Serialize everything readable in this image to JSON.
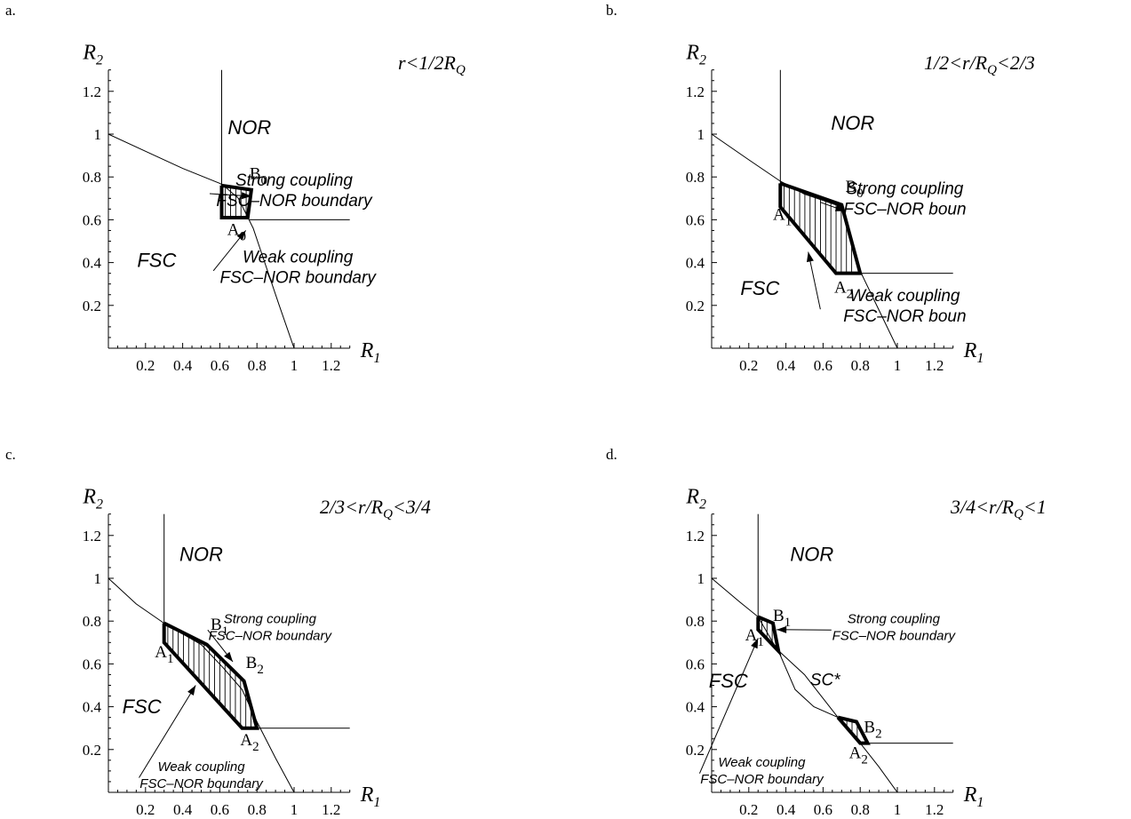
{
  "chart_data": [
    {
      "type": "phase-diagram",
      "panel_label": "a.",
      "title": "r<1/2R",
      "title_sub": "Q",
      "xlabel": "R",
      "xlabel_sub": "1",
      "ylabel": "R",
      "ylabel_sub": "2",
      "xlim": [
        0,
        1.3
      ],
      "ylim": [
        0,
        1.3
      ],
      "xticks": [
        "0.2",
        "0.4",
        "0.6",
        "0.8",
        "1",
        "1.2"
      ],
      "yticks": [
        "0.2",
        "0.4",
        "0.6",
        "0.8",
        "1",
        "1.2"
      ],
      "grid": false,
      "regions": [
        {
          "label": "NOR",
          "at": [
            0.76,
            1.0
          ]
        },
        {
          "label": "FSC",
          "at": [
            0.26,
            0.38
          ]
        }
      ],
      "boundary_curve": {
        "x": [
          0,
          0.2,
          0.4,
          0.6,
          0.62,
          0.7,
          0.78,
          0.85,
          0.92,
          1.0
        ],
        "y": [
          1.0,
          0.92,
          0.84,
          0.77,
          0.76,
          0.7,
          0.56,
          0.38,
          0.2,
          0
        ]
      },
      "vertical_line": {
        "x": 0.61,
        "y_from": 0.61,
        "y_to": 1.3
      },
      "horizontal_line": {
        "y": 0.6,
        "x_from": 0.76,
        "x_to": 1.3
      },
      "strong_boundary": {
        "x": [
          0.61,
          0.61,
          0.75,
          0.77,
          0.61
        ],
        "y": [
          0.76,
          0.61,
          0.61,
          0.74,
          0.76
        ]
      },
      "hatch_range": [
        0.63,
        0.75
      ],
      "points": [
        {
          "name": "B",
          "sub": "0",
          "x": 0.76,
          "y": 0.74,
          "label_at": [
            0.76,
            0.79
          ]
        },
        {
          "name": "A",
          "sub": "0",
          "x": 0.61,
          "y": 0.61,
          "label_at": [
            0.64,
            0.53
          ]
        }
      ],
      "annotations": [
        {
          "lines": [
            "Strong coupling",
            "FSC–NOR boundary"
          ],
          "at": [
            1.0,
            0.76
          ],
          "arrow_to": [
            0.77,
            0.71
          ],
          "size": "big"
        },
        {
          "lines": [
            "Weak coupling",
            "FSC–NOR boundary"
          ],
          "at": [
            1.02,
            0.4
          ],
          "arrow_to": [
            0.74,
            0.55
          ],
          "size": "big"
        }
      ]
    },
    {
      "type": "phase-diagram",
      "panel_label": "b.",
      "title": "1/2<r/R",
      "title_sub": "Q",
      "title_tail": "<2/3",
      "xlabel": "R",
      "xlabel_sub": "1",
      "ylabel": "R",
      "ylabel_sub": "2",
      "xlim": [
        0,
        1.3
      ],
      "ylim": [
        0,
        1.3
      ],
      "xticks": [
        "0.2",
        "0.4",
        "0.6",
        "0.8",
        "1",
        "1.2"
      ],
      "yticks": [
        "0.2",
        "0.4",
        "0.6",
        "0.8",
        "1",
        "1.2"
      ],
      "grid": false,
      "regions": [
        {
          "label": "NOR",
          "at": [
            0.76,
            1.02
          ]
        },
        {
          "label": "FSC",
          "at": [
            0.26,
            0.25
          ]
        }
      ],
      "boundary_curve": {
        "x": [
          0,
          0.2,
          0.37,
          0.5,
          0.6,
          0.7,
          0.75,
          0.8,
          0.9,
          1.0
        ],
        "y": [
          1.0,
          0.88,
          0.78,
          0.72,
          0.69,
          0.66,
          0.52,
          0.36,
          0.18,
          0
        ]
      },
      "vertical_line": {
        "x": 0.37,
        "y_from": 0.66,
        "y_to": 1.3
      },
      "horizontal_line": {
        "y": 0.35,
        "x_from": 0.8,
        "x_to": 1.3
      },
      "strong_boundary": {
        "x": [
          0.37,
          0.37,
          0.67,
          0.8,
          0.7,
          0.37
        ],
        "y": [
          0.77,
          0.66,
          0.35,
          0.35,
          0.67,
          0.77
        ]
      },
      "hatch_range": [
        0.39,
        0.77
      ],
      "points": [
        {
          "name": "B",
          "sub": "0",
          "x": 0.7,
          "y": 0.67,
          "label_at": [
            0.72,
            0.73
          ]
        },
        {
          "name": "A",
          "sub": "1",
          "x": 0.37,
          "y": 0.66,
          "label_at": [
            0.33,
            0.6
          ]
        },
        {
          "name": "A",
          "sub": "2",
          "x": 0.67,
          "y": 0.35,
          "label_at": [
            0.66,
            0.26
          ]
        }
      ],
      "annotations": [
        {
          "lines": [
            "Strong coupling",
            "FSC–NOR boun"
          ],
          "at": [
            1.04,
            0.72
          ],
          "arrow_to": [
            0.72,
            0.64
          ],
          "size": "big"
        },
        {
          "lines": [
            "Weak coupling",
            "FSC–NOR boun"
          ],
          "at": [
            1.04,
            0.22
          ],
          "arrow_to": [
            0.52,
            0.45
          ],
          "size": "big"
        }
      ]
    },
    {
      "type": "phase-diagram",
      "panel_label": "c.",
      "title": "2/3<r/R",
      "title_sub": "Q",
      "title_tail": "<3/4",
      "xlabel": "R",
      "xlabel_sub": "1",
      "ylabel": "R",
      "ylabel_sub": "2",
      "xlim": [
        0,
        1.3
      ],
      "ylim": [
        0,
        1.3
      ],
      "xticks": [
        "0.2",
        "0.4",
        "0.6",
        "0.8",
        "1",
        "1.2"
      ],
      "yticks": [
        "0.2",
        "0.4",
        "0.6",
        "0.8",
        "1",
        "1.2"
      ],
      "grid": false,
      "regions": [
        {
          "label": "NOR",
          "at": [
            0.5,
            1.08
          ]
        },
        {
          "label": "FSC",
          "at": [
            0.18,
            0.37
          ]
        }
      ],
      "boundary_curve": {
        "x": [
          0,
          0.15,
          0.3,
          0.5,
          0.62,
          0.72,
          0.8,
          0.9,
          1.0
        ],
        "y": [
          1.0,
          0.88,
          0.79,
          0.69,
          0.58,
          0.48,
          0.33,
          0.16,
          0
        ]
      },
      "vertical_line": {
        "x": 0.3,
        "y_from": 0.79,
        "y_to": 1.3
      },
      "horizontal_line": {
        "y": 0.3,
        "x_from": 0.8,
        "x_to": 1.3
      },
      "strong_boundary": {
        "x": [
          0.3,
          0.3,
          0.72,
          0.8,
          0.73,
          0.66,
          0.53,
          0.3
        ],
        "y": [
          0.79,
          0.7,
          0.3,
          0.3,
          0.52,
          0.58,
          0.69,
          0.79
        ]
      },
      "hatch_range": [
        0.32,
        0.77
      ],
      "points": [
        {
          "name": "B",
          "sub": "1",
          "x": 0.53,
          "y": 0.69,
          "label_at": [
            0.55,
            0.76
          ]
        },
        {
          "name": "B",
          "sub": "2",
          "x": 0.73,
          "y": 0.52,
          "label_at": [
            0.74,
            0.58
          ]
        },
        {
          "name": "A",
          "sub": "1",
          "x": 0.3,
          "y": 0.7,
          "label_at": [
            0.25,
            0.63
          ]
        },
        {
          "name": "A",
          "sub": "2",
          "x": 0.72,
          "y": 0.3,
          "label_at": [
            0.71,
            0.22
          ]
        }
      ],
      "annotations": [
        {
          "lines": [
            "Strong coupling",
            "FSC–NOR boundary"
          ],
          "at": [
            0.87,
            0.79
          ],
          "arrow_to": [
            0.67,
            0.61
          ],
          "size": "small"
        },
        {
          "lines": [
            "Weak coupling",
            "FSC–NOR boundary"
          ],
          "at": [
            0.5,
            0.1
          ],
          "arrow_to": [
            0.47,
            0.5
          ],
          "size": "small"
        }
      ]
    },
    {
      "type": "phase-diagram",
      "panel_label": "d.",
      "title": "3/4<r/R",
      "title_sub": "Q",
      "title_tail": "<1",
      "xlabel": "R",
      "xlabel_sub": "1",
      "ylabel": "R",
      "ylabel_sub": "2",
      "xlim": [
        0,
        1.3
      ],
      "ylim": [
        0,
        1.3
      ],
      "xticks": [
        "0.2",
        "0.4",
        "0.6",
        "0.8",
        "1",
        "1.2"
      ],
      "yticks": [
        "0.2",
        "0.4",
        "0.6",
        "0.8",
        "1",
        "1.2"
      ],
      "grid": false,
      "regions": [
        {
          "label": "NOR",
          "at": [
            0.54,
            1.08
          ]
        },
        {
          "label": "FSC",
          "at": [
            0.09,
            0.49
          ]
        }
      ],
      "boundary_curve": {
        "x": [
          0,
          0.15,
          0.25,
          0.35,
          0.5,
          0.68,
          0.8,
          0.9,
          1.0
        ],
        "y": [
          1.0,
          0.89,
          0.82,
          0.67,
          0.55,
          0.35,
          0.23,
          0.12,
          0
        ]
      },
      "vertical_line": {
        "x": 0.25,
        "y_from": 0.81,
        "y_to": 1.3
      },
      "horizontal_line": {
        "y": 0.23,
        "x_from": 0.82,
        "x_to": 1.3
      },
      "strong_boundary": {
        "x": [
          0.25,
          0.25,
          0.36,
          0.33,
          0.25
        ],
        "y": [
          0.82,
          0.76,
          0.66,
          0.79,
          0.82
        ]
      },
      "strong_boundary_2": {
        "x": [
          0.68,
          0.8,
          0.84,
          0.81,
          0.78,
          0.68
        ],
        "y": [
          0.35,
          0.23,
          0.23,
          0.28,
          0.33,
          0.35
        ]
      },
      "sc_curve": {
        "x": [
          0.36,
          0.45,
          0.55,
          0.68
        ],
        "y": [
          0.66,
          0.48,
          0.4,
          0.35
        ]
      },
      "hatch_range": [
        0.27,
        0.34
      ],
      "hatch_range_2": [
        0.7,
        0.8
      ],
      "points": [
        {
          "name": "B",
          "sub": "1",
          "x": 0.33,
          "y": 0.79,
          "label_at": [
            0.33,
            0.8
          ]
        },
        {
          "name": "B",
          "sub": "2",
          "x": 0.81,
          "y": 0.28,
          "label_at": [
            0.82,
            0.28
          ]
        },
        {
          "name": "A",
          "sub": "1",
          "x": 0.25,
          "y": 0.76,
          "label_at": [
            0.18,
            0.71
          ]
        },
        {
          "name": "A",
          "sub": "2",
          "x": 0.8,
          "y": 0.23,
          "label_at": [
            0.74,
            0.16
          ]
        },
        {
          "name": "SC*",
          "sub": "",
          "x": 0.52,
          "y": 0.43,
          "label_at": [
            0.53,
            0.5
          ]
        }
      ],
      "annotations": [
        {
          "lines": [
            "Strong coupling",
            "FSC–NOR boundary"
          ],
          "at": [
            0.98,
            0.79
          ],
          "arrow_to": [
            0.35,
            0.76
          ],
          "size": "small"
        },
        {
          "lines": [
            "Weak coupling",
            "FSC–NOR boundary"
          ],
          "at": [
            0.27,
            0.12
          ],
          "arrow_to": [
            0.25,
            0.72
          ],
          "size": "small"
        }
      ]
    }
  ]
}
